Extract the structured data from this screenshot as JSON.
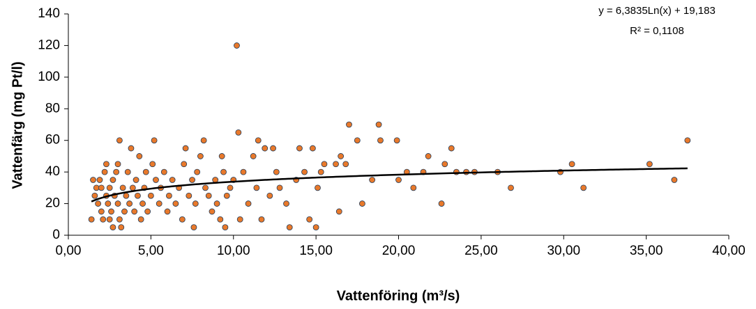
{
  "chart_data": {
    "type": "scatter",
    "x_label": "Vattenföring (m³/s)",
    "y_label": "Vattenfärg (mg Pt/l)",
    "color": "#e8792b",
    "xlim": [
      0,
      40
    ],
    "ylim": [
      0,
      140
    ],
    "xticks": [
      {
        "value": 0,
        "label": "0,00"
      },
      {
        "value": 5,
        "label": "5,00"
      },
      {
        "value": 10,
        "label": "10,00"
      },
      {
        "value": 15,
        "label": "15,00"
      },
      {
        "value": 20,
        "label": "20,00"
      },
      {
        "value": 25,
        "label": "25,00"
      },
      {
        "value": 30,
        "label": "30,00"
      },
      {
        "value": 35,
        "label": "35,00"
      },
      {
        "value": 40,
        "label": "40,00"
      }
    ],
    "yticks": [
      0,
      20,
      40,
      60,
      80,
      100,
      120,
      140
    ],
    "grid": false,
    "trendline": {
      "type": "log",
      "slope": 6.3835,
      "intercept": 19.183,
      "xrange": [
        1.4,
        37.5
      ],
      "equation": "y = 6,3835Ln(x) + 19,183",
      "r2": 0.1108,
      "r2_label": "R² = 0,1108"
    },
    "x": [
      1.4,
      1.5,
      1.6,
      1.7,
      1.8,
      1.9,
      2.0,
      2.0,
      2.1,
      2.2,
      2.3,
      2.3,
      2.4,
      2.5,
      2.5,
      2.6,
      2.7,
      2.7,
      2.8,
      2.9,
      3.0,
      3.0,
      3.1,
      3.1,
      3.2,
      3.3,
      3.4,
      3.5,
      3.6,
      3.7,
      3.8,
      3.9,
      4.0,
      4.1,
      4.2,
      4.3,
      4.4,
      4.5,
      4.6,
      4.7,
      4.8,
      5.0,
      5.1,
      5.2,
      5.3,
      5.5,
      5.6,
      5.8,
      6.0,
      6.1,
      6.3,
      6.5,
      6.7,
      6.9,
      7.0,
      7.1,
      7.3,
      7.5,
      7.6,
      7.7,
      7.8,
      8.0,
      8.2,
      8.3,
      8.5,
      8.7,
      8.9,
      9.0,
      9.2,
      9.3,
      9.4,
      9.5,
      9.6,
      9.8,
      10.0,
      10.2,
      10.3,
      10.4,
      10.6,
      10.9,
      11.2,
      11.4,
      11.5,
      11.7,
      11.9,
      12.2,
      12.4,
      12.6,
      12.8,
      13.2,
      13.4,
      13.8,
      14.0,
      14.3,
      14.6,
      14.8,
      15.0,
      15.1,
      15.3,
      15.5,
      16.2,
      16.4,
      16.5,
      16.8,
      17.0,
      17.5,
      17.8,
      18.4,
      18.8,
      18.9,
      19.9,
      20.0,
      20.5,
      20.9,
      21.5,
      21.8,
      22.6,
      22.8,
      23.2,
      23.5,
      24.1,
      24.6,
      26.0,
      26.8,
      29.8,
      30.5,
      31.2,
      35.2,
      36.7,
      37.5
    ],
    "values": [
      10,
      35,
      25,
      30,
      20,
      35,
      15,
      30,
      10,
      40,
      25,
      45,
      20,
      10,
      30,
      15,
      5,
      35,
      25,
      40,
      20,
      45,
      60,
      10,
      5,
      30,
      15,
      25,
      40,
      20,
      55,
      30,
      15,
      35,
      25,
      50,
      10,
      20,
      30,
      40,
      15,
      25,
      45,
      60,
      35,
      20,
      30,
      40,
      15,
      25,
      35,
      20,
      30,
      10,
      45,
      55,
      25,
      35,
      5,
      20,
      40,
      50,
      60,
      30,
      25,
      15,
      35,
      20,
      10,
      50,
      40,
      5,
      25,
      30,
      35,
      120,
      65,
      10,
      40,
      20,
      50,
      30,
      60,
      10,
      55,
      25,
      55,
      40,
      30,
      20,
      5,
      35,
      55,
      40,
      10,
      55,
      5,
      30,
      40,
      45,
      45,
      15,
      50,
      45,
      70,
      60,
      20,
      35,
      70,
      60,
      60,
      35,
      40,
      30,
      40,
      50,
      20,
      45,
      55,
      40,
      40,
      40,
      40,
      30,
      40,
      45,
      30,
      45,
      35,
      60
    ]
  }
}
